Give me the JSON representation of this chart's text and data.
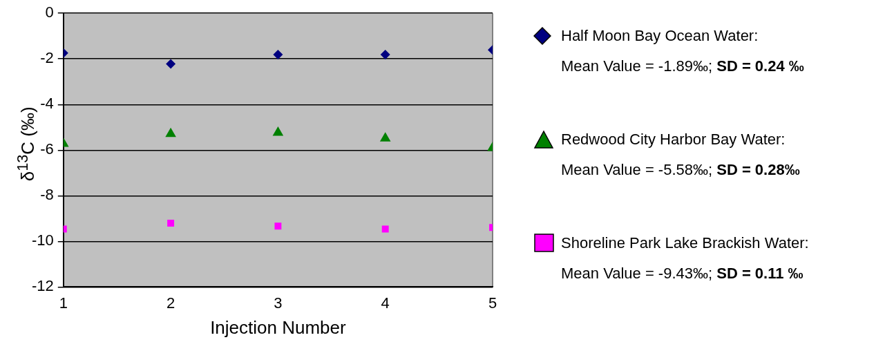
{
  "chart_data": {
    "type": "scatter",
    "xlabel": "Injection Number",
    "ylabel": "δ$^{13}$C (‰)",
    "x": [
      1,
      2,
      3,
      4,
      5
    ],
    "xlim": [
      1,
      5
    ],
    "xticks": [
      1,
      2,
      3,
      4,
      5
    ],
    "ylim": [
      -12,
      0
    ],
    "yticks": [
      -12,
      -10,
      -8,
      -6,
      -4,
      -2,
      0
    ],
    "grid": "y",
    "legend": "right",
    "series": [
      {
        "name": "Half Moon Bay Ocean Water:",
        "color": "#000080",
        "marker": "diamond",
        "values": [
          -1.74,
          -2.22,
          -1.81,
          -1.81,
          -1.61
        ]
      },
      {
        "name": "Redwood City Harbor Bay Water:",
        "color": "#008000",
        "marker": "triangle",
        "values": [
          -5.72,
          -5.29,
          -5.23,
          -5.48,
          -5.9
        ]
      },
      {
        "name": "Shoreline Park Lake Brackish Water:",
        "color": "#ff00ff",
        "marker": "square",
        "values": [
          -9.46,
          -9.2,
          -9.33,
          -9.46,
          -9.39
        ]
      }
    ],
    "annotations": [
      "Mean Value = -1.89‰; ",
      "SD = 0.24 ‰",
      "Mean Value = -5.58‰; ",
      "SD = 0.28‰",
      "Mean Value = -9.43‰; ",
      "SD = 0.11 ‰"
    ]
  }
}
